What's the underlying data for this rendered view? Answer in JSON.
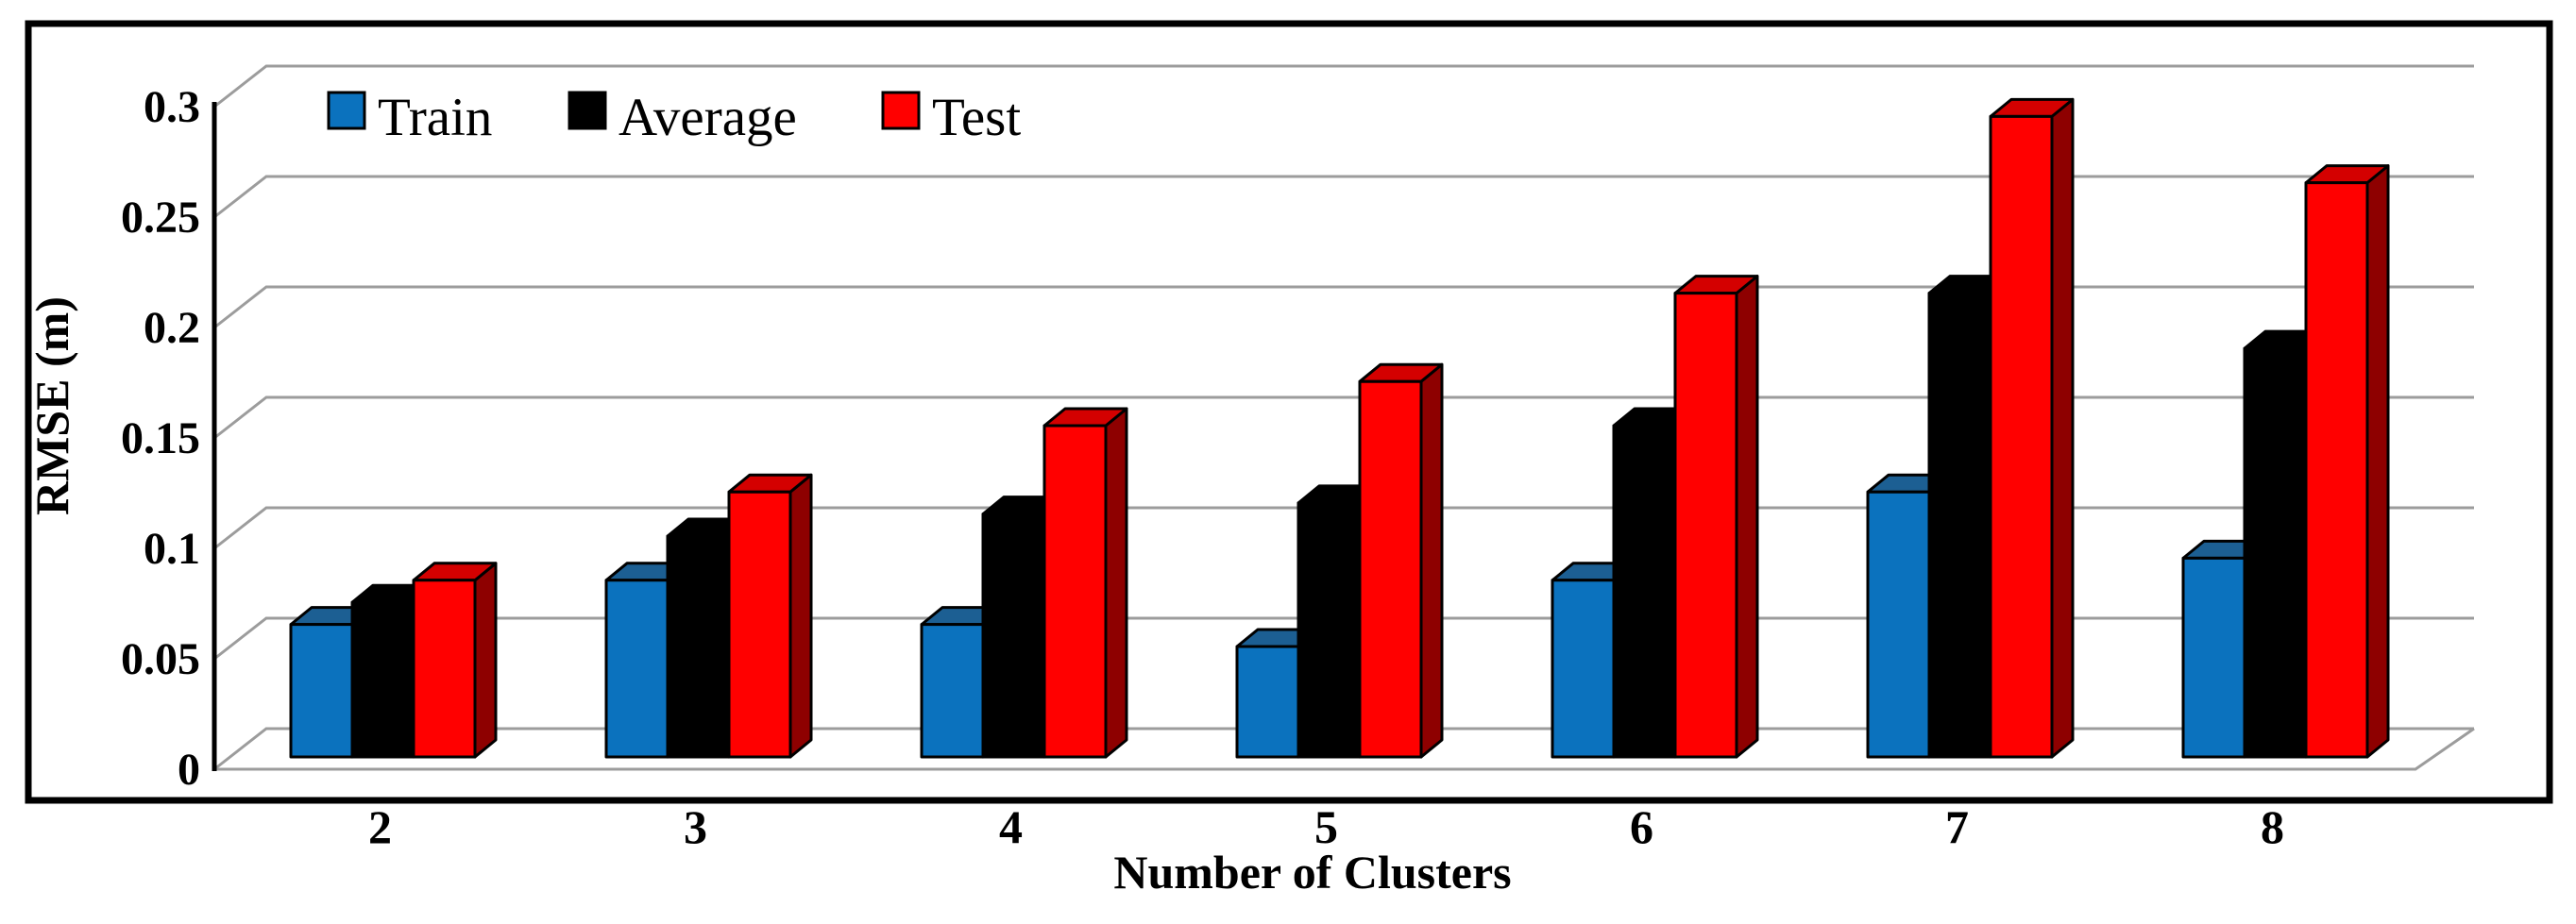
{
  "chart_data": {
    "type": "bar",
    "style": "3d-clustered-column",
    "title": "",
    "xlabel": "Number of Clusters",
    "ylabel": "RMSE (m)",
    "categories": [
      "2",
      "3",
      "4",
      "5",
      "6",
      "7",
      "8"
    ],
    "series": [
      {
        "name": "Train",
        "color": "#0B72BE",
        "color_top": "#1C5F93",
        "color_side": "#0A4E7F",
        "values": [
          0.06,
          0.08,
          0.06,
          0.05,
          0.08,
          0.12,
          0.09
        ]
      },
      {
        "name": "Average",
        "color": "#000000",
        "color_top": "#000000",
        "color_side": "#000000",
        "values": [
          0.07,
          0.1,
          0.11,
          0.115,
          0.15,
          0.21,
          0.185
        ]
      },
      {
        "name": "Test",
        "color": "#FF0000",
        "color_top": "#D40000",
        "color_side": "#8E0000",
        "values": [
          0.08,
          0.12,
          0.15,
          0.17,
          0.21,
          0.29,
          0.26
        ]
      }
    ],
    "y_ticks": [
      "0",
      "0.05",
      "0.1",
      "0.15",
      "0.2",
      "0.25",
      "0.3"
    ],
    "ylim": [
      0,
      0.3
    ],
    "grid": true,
    "grid_color": "#9C9C9C",
    "frame_color": "#000000",
    "legend_position": "top-left-inside"
  }
}
